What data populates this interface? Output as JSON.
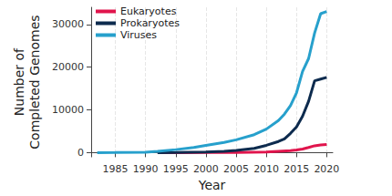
{
  "chart_data": {
    "type": "line",
    "x_label": "Year",
    "y_label": "Number of\nCompleted Genomes",
    "series": [
      {
        "name": "Eukaryotes",
        "color": "#e0144c",
        "x": [
          1992,
          1995,
          2000,
          2005,
          2010,
          2012,
          2014,
          2015,
          2016,
          2017,
          2018,
          2019,
          2020
        ],
        "values": [
          0,
          5,
          20,
          60,
          150,
          300,
          450,
          600,
          850,
          1200,
          1600,
          1800,
          1900
        ]
      },
      {
        "name": "Prokaryotes",
        "color": "#0d2b4e",
        "x": [
          1992,
          1995,
          2000,
          2003,
          2005,
          2008,
          2010,
          2012,
          2013,
          2014,
          2015,
          2016,
          2017,
          2018,
          2019,
          2020
        ],
        "values": [
          0,
          50,
          150,
          300,
          500,
          1000,
          1700,
          2600,
          3200,
          4500,
          6000,
          8500,
          12000,
          16800,
          17200,
          17600
        ]
      },
      {
        "name": "Viruses",
        "color": "#27a0cc",
        "x": [
          1982,
          1985,
          1990,
          1992,
          1995,
          1998,
          2000,
          2003,
          2005,
          2008,
          2010,
          2012,
          2013,
          2014,
          2015,
          2016,
          2017,
          2018,
          2019,
          2020
        ],
        "values": [
          0,
          20,
          100,
          300,
          700,
          1200,
          1700,
          2400,
          3000,
          4200,
          5500,
          7500,
          9000,
          11000,
          14000,
          19000,
          22000,
          28000,
          32500,
          33000
        ]
      }
    ],
    "xlim": [
      1981,
      2021
    ],
    "xticks": [
      1985,
      1990,
      1995,
      2000,
      2005,
      2010,
      2015,
      2020
    ],
    "ylim": [
      -1000,
      34000
    ],
    "yticks": [
      0,
      10000,
      20000,
      30000
    ],
    "grid": true,
    "legend": "upper left"
  }
}
